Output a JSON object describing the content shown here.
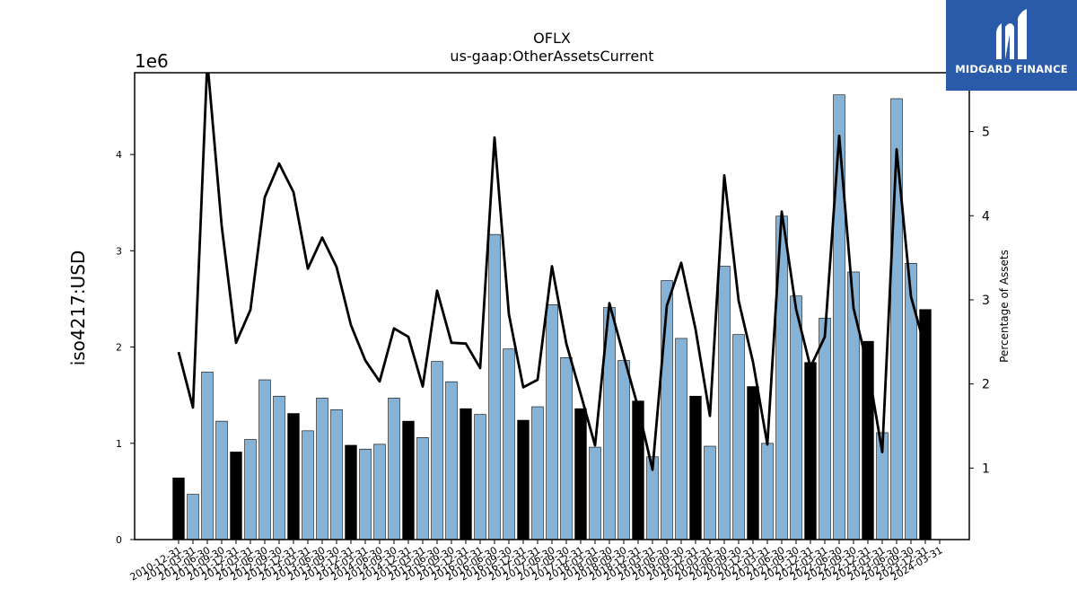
{
  "chart_data": {
    "type": "bar",
    "title": "OFLX",
    "subtitle": "us-gaap:OtherAssetsCurrent",
    "ylabel": "iso4217:USD",
    "y2label": "Percentage of Assets",
    "y_offset_label": "1e6",
    "ylim": [
      0,
      4.85
    ],
    "y2lim": [
      0.15,
      5.7
    ],
    "yticks": [
      0,
      1,
      2,
      3,
      4
    ],
    "y2ticks": [
      1,
      2,
      3,
      4,
      5
    ],
    "categories": [
      "2010-12-31",
      "2011-03-31",
      "2011-06-30",
      "2011-09-30",
      "2011-12-31",
      "2012-03-31",
      "2012-06-30",
      "2012-09-30",
      "2012-12-31",
      "2013-03-31",
      "2013-06-30",
      "2013-09-30",
      "2013-12-31",
      "2014-03-31",
      "2014-06-30",
      "2014-09-30",
      "2014-12-31",
      "2015-03-31",
      "2015-06-30",
      "2015-09-30",
      "2015-12-31",
      "2016-03-31",
      "2016-06-30",
      "2016-09-30",
      "2016-12-31",
      "2017-03-31",
      "2017-06-30",
      "2017-09-30",
      "2017-12-31",
      "2018-03-31",
      "2018-06-30",
      "2018-09-30",
      "2018-12-31",
      "2019-03-31",
      "2019-06-30",
      "2019-09-30",
      "2019-12-31",
      "2020-03-31",
      "2020-06-30",
      "2020-09-30",
      "2020-12-31",
      "2021-03-31",
      "2021-06-30",
      "2021-09-30",
      "2021-12-31",
      "2022-03-31",
      "2022-06-30",
      "2022-09-30",
      "2022-12-31",
      "2023-03-31",
      "2023-06-30",
      "2023-09-30",
      "2023-12-31",
      "2024-03-31"
    ],
    "series": [
      {
        "values": [
          0.64,
          0.47,
          1.74,
          1.23,
          0.91,
          1.04,
          1.66,
          1.49,
          1.31,
          1.13,
          1.47,
          1.35,
          0.98,
          0.94,
          0.99,
          1.47,
          1.23,
          1.06,
          1.85,
          1.64,
          1.36,
          1.3,
          3.17,
          1.98,
          1.24,
          1.38,
          2.44,
          1.89,
          1.36,
          0.96,
          2.41,
          1.86,
          1.44,
          0.86,
          2.69,
          2.09,
          1.49,
          0.97,
          2.84,
          2.13,
          1.59,
          1.0,
          3.36,
          2.53,
          1.84,
          2.3,
          4.62,
          2.78,
          2.06,
          1.11,
          4.58,
          2.87,
          2.39,
          null
        ]
      },
      {
        "values": [
          2.38,
          1.72,
          5.84,
          3.88,
          2.49,
          2.88,
          4.22,
          4.62,
          4.28,
          3.37,
          3.74,
          3.39,
          2.7,
          2.28,
          2.03,
          2.66,
          2.56,
          1.97,
          3.11,
          2.49,
          2.48,
          2.19,
          4.93,
          2.83,
          1.96,
          2.05,
          3.4,
          2.48,
          1.88,
          1.27,
          2.96,
          2.33,
          1.72,
          0.98,
          2.93,
          3.44,
          2.65,
          1.62,
          4.48,
          2.99,
          2.26,
          1.28,
          4.05,
          2.89,
          2.2,
          2.56,
          4.95,
          2.9,
          2.2,
          1.19,
          4.79,
          3.04,
          2.42,
          null
        ]
      }
    ],
    "bar_color": "#86b2d6",
    "highlight_color": "#000000",
    "highlight_months": [
      "12"
    ],
    "line_color": "#000000",
    "grid": false
  },
  "logo": {
    "text": "MIDGARD FINANCE"
  }
}
